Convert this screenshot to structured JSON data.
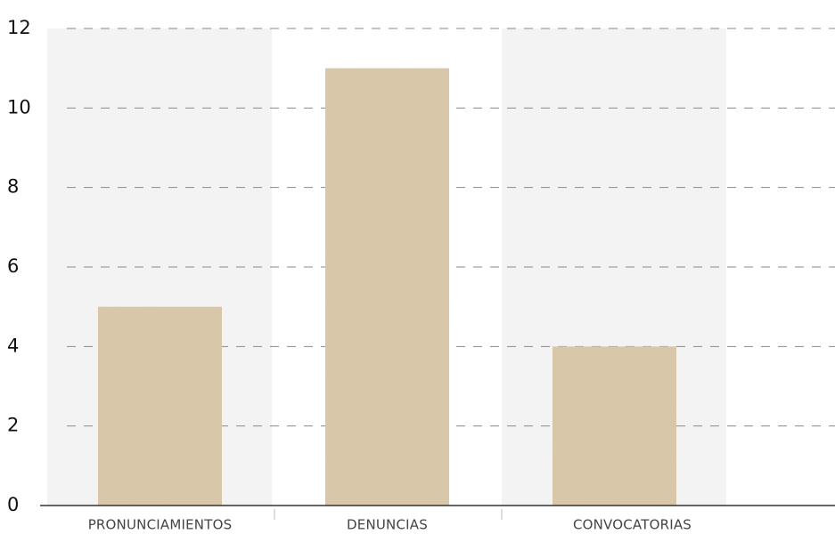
{
  "chart_data": {
    "type": "bar",
    "categories": [
      "PRONUNCIAMIENTOS",
      "DENUNCIAS",
      "CONVOCATORIAS"
    ],
    "values": [
      5,
      11,
      4
    ],
    "ylim": [
      0,
      12
    ],
    "yticks": [
      0,
      2,
      4,
      6,
      8,
      10,
      12
    ],
    "ytick_labels": [
      "0",
      "2",
      "4",
      "6",
      "8",
      "10",
      "12"
    ],
    "grid": true,
    "grid_style": "dashed",
    "legend": "none",
    "colors": {
      "bar": "#dac8aa",
      "band": "#f3f3f3",
      "grid": "#8a8a8a",
      "axis": "#333333"
    }
  }
}
